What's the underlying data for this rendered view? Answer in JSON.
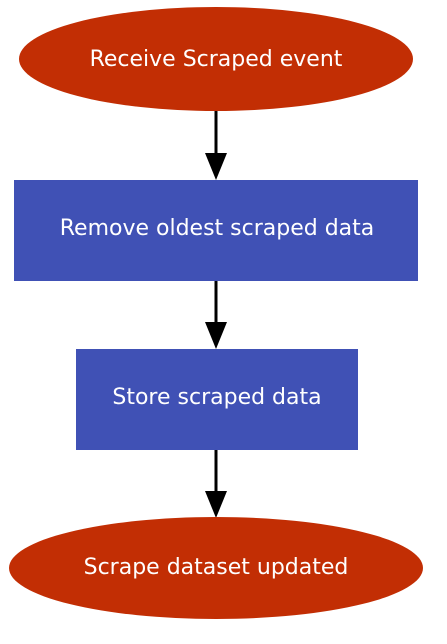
{
  "diagram": {
    "type": "flowchart",
    "colors": {
      "terminal": "#c22e04",
      "process": "#4051b5",
      "edge": "#000000",
      "text": "#ffffff",
      "background": "#ffffff"
    },
    "nodes": [
      {
        "id": "start",
        "shape": "ellipse",
        "label": "Receive Scraped event"
      },
      {
        "id": "remove",
        "shape": "rectangle",
        "label": "Remove oldest scraped data"
      },
      {
        "id": "store",
        "shape": "rectangle",
        "label": "Store scraped data"
      },
      {
        "id": "end",
        "shape": "ellipse",
        "label": "Scrape dataset updated"
      }
    ],
    "edges": [
      {
        "from": "start",
        "to": "remove"
      },
      {
        "from": "remove",
        "to": "store"
      },
      {
        "from": "store",
        "to": "end"
      }
    ]
  }
}
